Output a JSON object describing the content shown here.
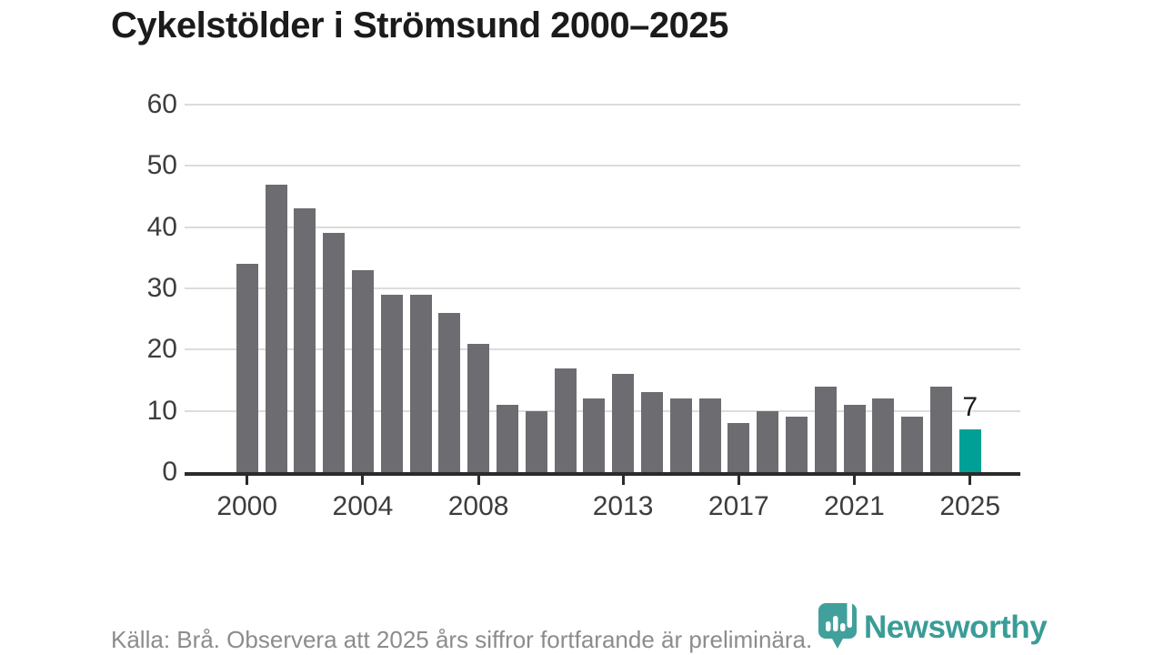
{
  "header": {
    "title": "Cykelstölder i Strömsund 2000–2025"
  },
  "chart_data": {
    "type": "bar",
    "title": "Cykelstölder i Strömsund 2000–2025",
    "categories": [
      2000,
      2001,
      2002,
      2003,
      2004,
      2005,
      2006,
      2007,
      2008,
      2009,
      2010,
      2011,
      2012,
      2013,
      2014,
      2015,
      2016,
      2017,
      2018,
      2019,
      2020,
      2021,
      2022,
      2023,
      2024,
      2025
    ],
    "values": [
      34,
      47,
      43,
      39,
      33,
      29,
      29,
      26,
      21,
      11,
      10,
      17,
      12,
      16,
      13,
      12,
      12,
      8,
      10,
      9,
      14,
      11,
      12,
      9,
      14,
      7
    ],
    "xlabel": "",
    "ylabel": "",
    "ylim": [
      0,
      60
    ],
    "yticks": [
      0,
      10,
      20,
      30,
      40,
      50,
      60
    ],
    "xticks": [
      2000,
      2004,
      2008,
      2013,
      2017,
      2021,
      2025
    ],
    "grid": true,
    "legend": false,
    "bar_color": "#6d6c71",
    "highlight": {
      "category": 2025,
      "value": 7,
      "label": "7",
      "color": "#00a096"
    }
  },
  "footer": {
    "source_note": "Källa: Brå. Observera att 2025 års siffror fortfarande är preliminära.",
    "logo_text": "Newsworthy"
  },
  "colors": {
    "accent_teal": "#00a096",
    "logo_teal": "#41a09b",
    "bar_gray": "#6d6c71",
    "grid_gray": "#dcdcdc",
    "axis_dark": "#2b2b2b",
    "text_dark": "#1b1b1b",
    "label_gray": "#3d3d3d",
    "note_gray": "#8c8c8c"
  }
}
